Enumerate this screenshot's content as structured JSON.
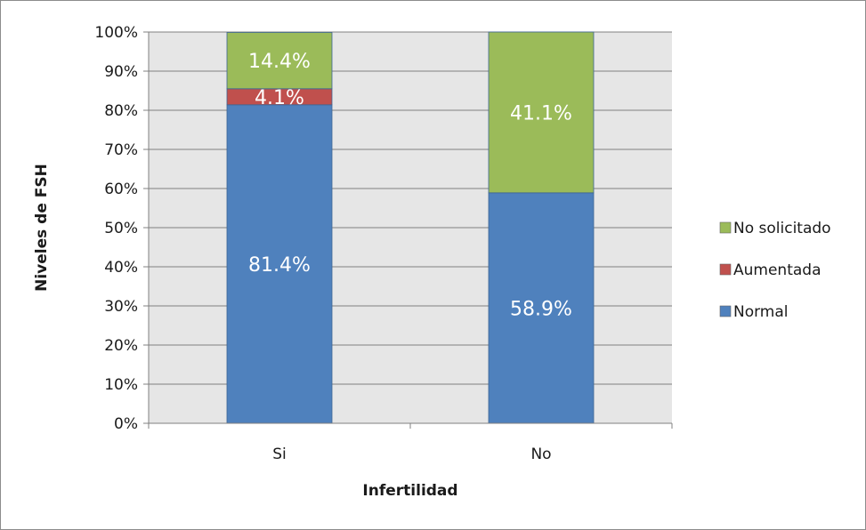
{
  "chart_data": {
    "type": "bar",
    "stacked": true,
    "percent_stacked": true,
    "categories": [
      "Si",
      "No"
    ],
    "series": [
      {
        "name": "Normal",
        "values": [
          81.4,
          58.9
        ],
        "labels": [
          "81.4%",
          "58.9%"
        ],
        "color": "#4f81bd"
      },
      {
        "name": "Aumentada",
        "values": [
          4.1,
          0
        ],
        "labels": [
          "4.1%",
          ""
        ],
        "color": "#c0504d"
      },
      {
        "name": "No solicitado",
        "values": [
          14.4,
          41.1
        ],
        "labels": [
          "14.4%",
          "41.1%"
        ],
        "color": "#9bbb59"
      }
    ],
    "xlabel": "Infertilidad",
    "ylabel": "Niveles de FSH",
    "ylim": [
      0,
      100
    ],
    "yticks": [
      "0%",
      "10%",
      "20%",
      "30%",
      "40%",
      "50%",
      "60%",
      "70%",
      "80%",
      "90%",
      "100%"
    ],
    "grid": true,
    "legend_position": "right",
    "legend_order": [
      "No solicitado",
      "Aumentada",
      "Normal"
    ],
    "plot_background": "#e6e6e6"
  }
}
